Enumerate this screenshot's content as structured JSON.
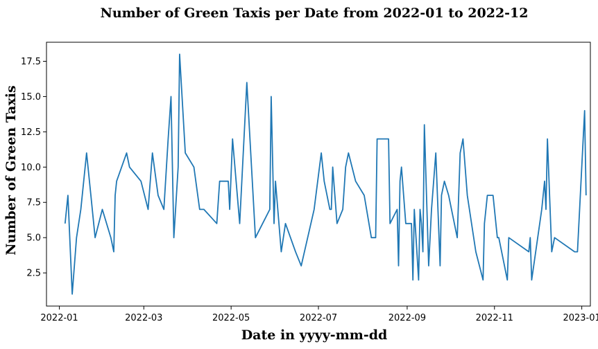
{
  "chart_data": {
    "type": "line",
    "title": "Number of Green Taxis per Date from 2022-01 to 2022-12",
    "xlabel": "Date in yyyy-mm-dd",
    "ylabel": "Number of Green Taxis",
    "x_scale": "date",
    "xlim": [
      "2021-12-23",
      "2023-01-07"
    ],
    "ylim": [
      0.15,
      18.85
    ],
    "grid": false,
    "x_ticks": [
      "2022-01",
      "2022-03",
      "2022-05",
      "2022-07",
      "2022-09",
      "2022-11",
      "2023-01"
    ],
    "y_ticks": [
      "2.5",
      "5.0",
      "7.5",
      "10.0",
      "12.5",
      "15.0",
      "17.5"
    ],
    "color": "#1f77b4",
    "series": [
      {
        "points": [
          [
            "2022-01-05",
            6
          ],
          [
            "2022-01-07",
            8
          ],
          [
            "2022-01-10",
            1
          ],
          [
            "2022-01-13",
            5
          ],
          [
            "2022-01-16",
            7
          ],
          [
            "2022-01-20",
            11
          ],
          [
            "2022-01-23",
            8
          ],
          [
            "2022-01-26",
            5
          ],
          [
            "2022-01-31",
            7
          ],
          [
            "2022-02-06",
            5
          ],
          [
            "2022-02-08",
            4
          ],
          [
            "2022-02-09",
            8
          ],
          [
            "2022-02-10",
            9
          ],
          [
            "2022-02-17",
            11
          ],
          [
            "2022-02-19",
            10
          ],
          [
            "2022-02-27",
            9
          ],
          [
            "2022-03-04",
            7
          ],
          [
            "2022-03-07",
            11
          ],
          [
            "2022-03-11",
            8
          ],
          [
            "2022-03-15",
            7
          ],
          [
            "2022-03-18",
            12
          ],
          [
            "2022-03-20",
            15
          ],
          [
            "2022-03-22",
            5
          ],
          [
            "2022-03-25",
            10
          ],
          [
            "2022-03-26",
            18
          ],
          [
            "2022-03-30",
            11
          ],
          [
            "2022-04-05",
            10
          ],
          [
            "2022-04-09",
            7
          ],
          [
            "2022-04-12",
            7
          ],
          [
            "2022-04-21",
            6
          ],
          [
            "2022-04-23",
            9
          ],
          [
            "2022-04-29",
            9
          ],
          [
            "2022-04-30",
            7
          ],
          [
            "2022-05-02",
            12
          ],
          [
            "2022-05-07",
            6
          ],
          [
            "2022-05-12",
            16
          ],
          [
            "2022-05-18",
            5
          ],
          [
            "2022-05-28",
            7
          ],
          [
            "2022-05-29",
            15
          ],
          [
            "2022-05-31",
            6
          ],
          [
            "2022-06-01",
            9
          ],
          [
            "2022-06-05",
            4
          ],
          [
            "2022-06-08",
            6
          ],
          [
            "2022-06-15",
            4
          ],
          [
            "2022-06-19",
            3
          ],
          [
            "2022-06-28",
            7
          ],
          [
            "2022-07-03",
            11
          ],
          [
            "2022-07-05",
            9
          ],
          [
            "2022-07-09",
            7
          ],
          [
            "2022-07-10",
            7
          ],
          [
            "2022-07-11",
            10
          ],
          [
            "2022-07-14",
            6
          ],
          [
            "2022-07-18",
            7
          ],
          [
            "2022-07-20",
            10
          ],
          [
            "2022-07-22",
            11
          ],
          [
            "2022-07-27",
            9
          ],
          [
            "2022-08-02",
            8
          ],
          [
            "2022-08-07",
            5
          ],
          [
            "2022-08-10",
            5
          ],
          [
            "2022-08-11",
            12
          ],
          [
            "2022-08-18",
            12
          ],
          [
            "2022-08-19",
            12
          ],
          [
            "2022-08-20",
            6
          ],
          [
            "2022-08-25",
            7
          ],
          [
            "2022-08-26",
            3
          ],
          [
            "2022-08-27",
            9
          ],
          [
            "2022-08-28",
            10
          ],
          [
            "2022-08-31",
            6
          ],
          [
            "2022-09-01",
            6
          ],
          [
            "2022-09-04",
            6
          ],
          [
            "2022-09-05",
            2
          ],
          [
            "2022-09-06",
            7
          ],
          [
            "2022-09-09",
            2
          ],
          [
            "2022-09-10",
            7
          ],
          [
            "2022-09-11",
            6
          ],
          [
            "2022-09-12",
            4
          ],
          [
            "2022-09-13",
            13
          ],
          [
            "2022-09-16",
            3
          ],
          [
            "2022-09-18",
            7
          ],
          [
            "2022-09-21",
            11
          ],
          [
            "2022-09-24",
            3
          ],
          [
            "2022-09-25",
            8
          ],
          [
            "2022-09-27",
            9
          ],
          [
            "2022-09-30",
            8
          ],
          [
            "2022-10-06",
            5
          ],
          [
            "2022-10-08",
            11
          ],
          [
            "2022-10-10",
            12
          ],
          [
            "2022-10-13",
            8
          ],
          [
            "2022-10-19",
            4
          ],
          [
            "2022-10-24",
            2
          ],
          [
            "2022-10-25",
            6
          ],
          [
            "2022-10-27",
            8
          ],
          [
            "2022-10-31",
            8
          ],
          [
            "2022-11-03",
            5
          ],
          [
            "2022-11-04",
            5
          ],
          [
            "2022-11-10",
            2
          ],
          [
            "2022-11-11",
            5
          ],
          [
            "2022-11-25",
            4
          ],
          [
            "2022-11-26",
            5
          ],
          [
            "2022-11-27",
            2
          ],
          [
            "2022-12-04",
            7
          ],
          [
            "2022-12-06",
            9
          ],
          [
            "2022-12-07",
            7
          ],
          [
            "2022-12-08",
            12
          ],
          [
            "2022-12-11",
            4
          ],
          [
            "2022-12-13",
            5
          ],
          [
            "2022-12-27",
            4
          ],
          [
            "2022-12-29",
            4
          ],
          [
            "2023-01-03",
            14
          ],
          [
            "2023-01-04",
            8
          ]
        ]
      }
    ]
  }
}
